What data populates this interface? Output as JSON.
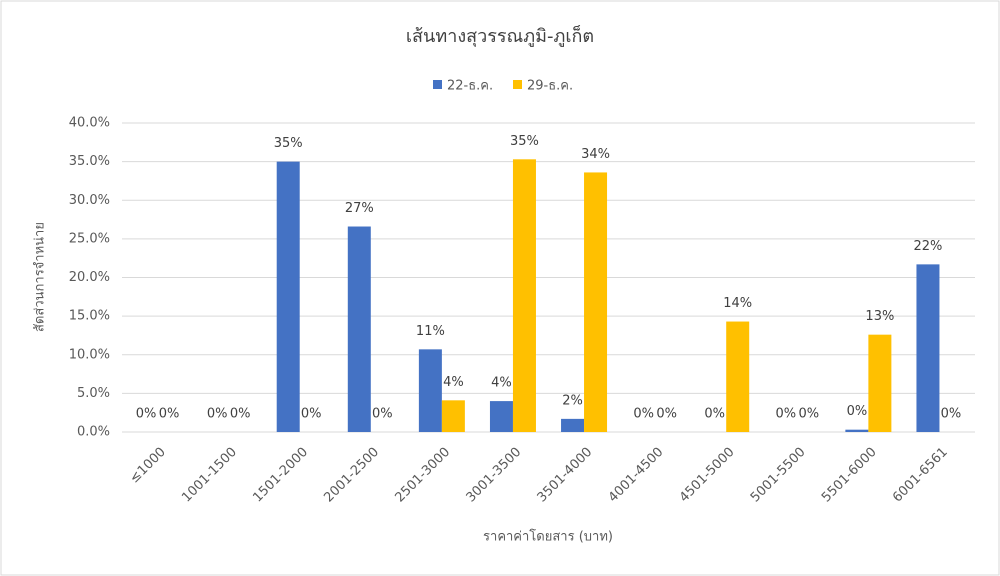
{
  "chart_data": {
    "type": "bar",
    "title": "เส้นทางสุวรรณภูมิ-ภูเก็ต",
    "x_label": "ราคาค่าโดยสาร (บาท)",
    "y_label": "สัดส่วนการจำหน่าย",
    "categories": [
      "≤1000",
      "1001-1500",
      "1501-2000",
      "2001-2500",
      "2501-3000",
      "3001-3500",
      "3501-4000",
      "4001-4500",
      "4501-5000",
      "5001-5500",
      "5501-6000",
      "6001-6561"
    ],
    "series": [
      {
        "name": "22-ธ.ค.",
        "color": "#4472c4",
        "values": [
          0,
          0,
          35,
          26.6,
          10.7,
          4.0,
          1.7,
          0,
          0,
          0,
          0.3,
          21.7
        ],
        "value_labels": [
          "0%",
          "0%",
          "35%",
          "27%",
          "11%",
          "4%",
          "2%",
          "0%",
          "0%",
          "0%",
          "0%",
          "22%"
        ]
      },
      {
        "name": "29-ธ.ค.",
        "color": "#ffc000",
        "values": [
          0,
          0,
          0,
          0,
          4.1,
          35.3,
          33.6,
          0,
          14.3,
          0,
          12.6,
          0
        ],
        "value_labels": [
          "0%",
          "0%",
          "0%",
          "0%",
          "4%",
          "35%",
          "34%",
          "0%",
          "14%",
          "0%",
          "13%",
          "0%"
        ]
      }
    ],
    "ylim": [
      0,
      40
    ],
    "yticks": [
      {
        "value": 0,
        "label": "0.0%"
      },
      {
        "value": 5,
        "label": "5.0%"
      },
      {
        "value": 10,
        "label": "10.0%"
      },
      {
        "value": 15,
        "label": "15.0%"
      },
      {
        "value": 20,
        "label": "20.0%"
      },
      {
        "value": 25,
        "label": "25.0%"
      },
      {
        "value": 30,
        "label": "30.0%"
      },
      {
        "value": 35,
        "label": "35.0%"
      },
      {
        "value": 40,
        "label": "40.0%"
      }
    ],
    "grid": true,
    "legend": "top"
  }
}
